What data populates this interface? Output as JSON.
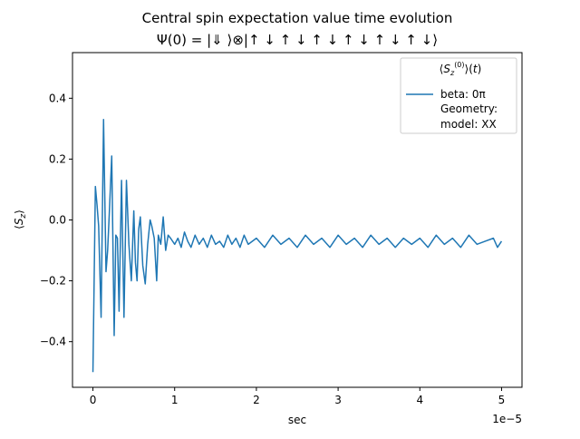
{
  "chart_data": {
    "type": "line",
    "title": "Central spin expectation value time evolution",
    "subtitle": "Ψ(0) = |⇓ ⟩⊗|↑ ↓ ↑ ↓ ↑ ↓ ↑ ↓ ↑ ↓ ↑ ↓⟩",
    "xlabel": "sec",
    "ylabel": "⟨S_z⟩",
    "x_offset_label": "1e−5",
    "xlim": [
      -0.25,
      5.25
    ],
    "ylim": [
      -0.55,
      0.55
    ],
    "xticks": [
      0,
      1,
      2,
      3,
      4,
      5
    ],
    "xtick_labels": [
      "0",
      "1",
      "2",
      "3",
      "4",
      "5"
    ],
    "yticks": [
      -0.4,
      -0.2,
      0.0,
      0.2,
      0.4
    ],
    "ytick_labels": [
      "−0.4",
      "−0.2",
      "0.0",
      "0.2",
      "0.4"
    ],
    "grid": false,
    "legend": {
      "placement": "top-right",
      "title": "⟨S_z^(0)⟩(t)",
      "entries": [
        "beta: 0π",
        "Geometry:",
        "model: XX"
      ]
    },
    "series": [
      {
        "name": "beta: 0π",
        "color": "#1f77b4",
        "x": [
          0.0,
          0.03,
          0.05,
          0.07,
          0.1,
          0.13,
          0.16,
          0.18,
          0.2,
          0.23,
          0.26,
          0.28,
          0.3,
          0.32,
          0.35,
          0.38,
          0.41,
          0.44,
          0.47,
          0.5,
          0.52,
          0.54,
          0.56,
          0.58,
          0.61,
          0.64,
          0.67,
          0.7,
          0.72,
          0.75,
          0.78,
          0.8,
          0.83,
          0.86,
          0.89,
          0.92,
          0.95,
          1.0,
          1.04,
          1.08,
          1.12,
          1.16,
          1.2,
          1.25,
          1.3,
          1.35,
          1.4,
          1.45,
          1.5,
          1.55,
          1.6,
          1.65,
          1.7,
          1.75,
          1.8,
          1.85,
          1.9,
          1.95,
          2.0,
          2.1,
          2.2,
          2.3,
          2.4,
          2.5,
          2.6,
          2.7,
          2.8,
          2.9,
          3.0,
          3.1,
          3.2,
          3.3,
          3.4,
          3.5,
          3.6,
          3.7,
          3.8,
          3.9,
          4.0,
          4.1,
          4.2,
          4.3,
          4.4,
          4.5,
          4.6,
          4.7,
          4.8,
          4.9,
          4.95,
          5.0
        ],
        "y": [
          -0.5,
          0.11,
          0.05,
          -0.02,
          -0.32,
          0.33,
          -0.17,
          -0.1,
          0.02,
          0.21,
          -0.38,
          -0.05,
          -0.06,
          -0.3,
          0.13,
          -0.32,
          0.13,
          -0.08,
          -0.2,
          0.03,
          -0.14,
          -0.2,
          -0.03,
          0.01,
          -0.15,
          -0.21,
          -0.08,
          0.0,
          -0.02,
          -0.06,
          -0.2,
          -0.05,
          -0.08,
          0.01,
          -0.1,
          -0.05,
          -0.06,
          -0.08,
          -0.06,
          -0.09,
          -0.04,
          -0.07,
          -0.09,
          -0.05,
          -0.08,
          -0.06,
          -0.09,
          -0.05,
          -0.08,
          -0.07,
          -0.09,
          -0.05,
          -0.08,
          -0.06,
          -0.09,
          -0.05,
          -0.08,
          -0.07,
          -0.06,
          -0.09,
          -0.05,
          -0.08,
          -0.06,
          -0.09,
          -0.05,
          -0.08,
          -0.06,
          -0.09,
          -0.05,
          -0.08,
          -0.06,
          -0.09,
          -0.05,
          -0.08,
          -0.06,
          -0.09,
          -0.06,
          -0.08,
          -0.06,
          -0.09,
          -0.05,
          -0.08,
          -0.06,
          -0.09,
          -0.05,
          -0.08,
          -0.07,
          -0.06,
          -0.09,
          -0.07
        ]
      }
    ]
  }
}
